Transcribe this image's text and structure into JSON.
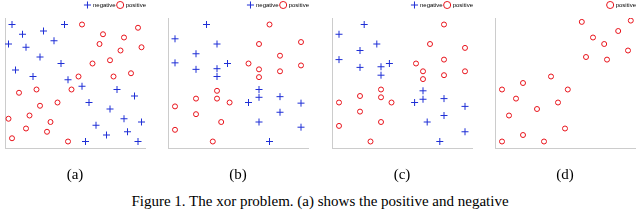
{
  "chart_data": [
    {
      "type": "scatter",
      "title": "(a)",
      "xlim": [
        -1,
        1
      ],
      "ylim": [
        -1,
        1
      ],
      "tick_labels": false,
      "grid": false,
      "legend": "top-right",
      "series": [
        {
          "name": "negative",
          "color": "#1f2fd6",
          "marker": "plus",
          "values": [
            [
              -0.9,
              0.9
            ],
            [
              -0.7,
              0.55
            ],
            [
              -0.45,
              0.8
            ],
            [
              -0.2,
              0.3
            ],
            [
              -0.85,
              0.2
            ],
            [
              -0.3,
              0.65
            ],
            [
              -0.6,
              0.1
            ],
            [
              -0.15,
              0.9
            ],
            [
              -0.5,
              0.4
            ],
            [
              -0.95,
              0.6
            ],
            [
              -0.1,
              0.05
            ],
            [
              -0.75,
              0.75
            ],
            [
              0.9,
              -0.9
            ],
            [
              0.7,
              -0.55
            ],
            [
              0.45,
              -0.8
            ],
            [
              0.2,
              -0.3
            ],
            [
              0.85,
              -0.2
            ],
            [
              0.3,
              -0.65
            ],
            [
              0.6,
              -0.1
            ],
            [
              0.15,
              -0.9
            ],
            [
              0.5,
              -0.4
            ],
            [
              0.95,
              -0.6
            ],
            [
              0.1,
              -0.05
            ],
            [
              0.75,
              -0.75
            ]
          ]
        },
        {
          "name": "positive",
          "color": "#e8141c",
          "marker": "circle",
          "values": [
            [
              0.9,
              0.85
            ],
            [
              0.65,
              0.5
            ],
            [
              0.4,
              0.75
            ],
            [
              0.25,
              0.3
            ],
            [
              0.8,
              0.15
            ],
            [
              0.35,
              0.6
            ],
            [
              0.55,
              0.1
            ],
            [
              0.1,
              0.9
            ],
            [
              0.5,
              0.35
            ],
            [
              0.95,
              0.55
            ],
            [
              0.05,
              0.1
            ],
            [
              0.7,
              0.7
            ],
            [
              -0.9,
              -0.85
            ],
            [
              -0.65,
              -0.5
            ],
            [
              -0.4,
              -0.75
            ],
            [
              -0.25,
              -0.3
            ],
            [
              -0.8,
              -0.15
            ],
            [
              -0.35,
              -0.6
            ],
            [
              -0.55,
              -0.1
            ],
            [
              -0.1,
              -0.9
            ],
            [
              -0.5,
              -0.35
            ],
            [
              -0.95,
              -0.55
            ],
            [
              -0.05,
              -0.1
            ],
            [
              -0.7,
              -0.7
            ]
          ]
        }
      ]
    },
    {
      "type": "scatter",
      "title": "(b)",
      "xlim": [
        -1,
        1
      ],
      "ylim": [
        -1,
        1
      ],
      "tick_labels": false,
      "grid": false,
      "legend": "top-right",
      "series": [
        {
          "name": "negative",
          "color": "#1f2fd6",
          "marker": "plus",
          "values": [
            [
              -0.3,
              0.22
            ],
            [
              -0.6,
              0.45
            ],
            [
              -0.9,
              0.68
            ],
            [
              -0.3,
              0.1
            ],
            [
              -0.6,
              0.21
            ],
            [
              -0.9,
              0.31
            ],
            [
              -0.15,
              0.3
            ],
            [
              -0.3,
              0.6
            ],
            [
              -0.45,
              0.9
            ],
            [
              0.3,
              -0.22
            ],
            [
              0.6,
              -0.45
            ],
            [
              0.9,
              -0.68
            ],
            [
              0.3,
              -0.1
            ],
            [
              0.6,
              -0.21
            ],
            [
              0.9,
              -0.31
            ],
            [
              0.15,
              -0.3
            ],
            [
              0.3,
              -0.6
            ],
            [
              0.45,
              -0.9
            ]
          ]
        },
        {
          "name": "positive",
          "color": "#e8141c",
          "marker": "circle",
          "values": [
            [
              0.3,
              0.09
            ],
            [
              0.6,
              0.18
            ],
            [
              0.9,
              0.27
            ],
            [
              0.3,
              0.21
            ],
            [
              0.6,
              0.42
            ],
            [
              0.9,
              0.63
            ],
            [
              0.15,
              0.3
            ],
            [
              0.3,
              0.6
            ],
            [
              0.45,
              0.9
            ],
            [
              -0.3,
              -0.12
            ],
            [
              -0.6,
              -0.24
            ],
            [
              -0.9,
              -0.36
            ],
            [
              -0.3,
              -0.24
            ],
            [
              -0.6,
              -0.48
            ],
            [
              -0.9,
              -0.72
            ],
            [
              -0.12,
              -0.3
            ],
            [
              -0.24,
              -0.6
            ],
            [
              -0.36,
              -0.9
            ]
          ]
        }
      ]
    },
    {
      "type": "scatter",
      "title": "(c)",
      "xlim": [
        -1,
        1
      ],
      "ylim": [
        -1,
        1
      ],
      "tick_labels": false,
      "grid": false,
      "legend": "top-right",
      "series": [
        {
          "name": "negative",
          "color": "#1f2fd6",
          "marker": "plus",
          "values": [
            [
              -0.3,
              0.25
            ],
            [
              -0.6,
              0.5
            ],
            [
              -0.9,
              0.75
            ],
            [
              -0.3,
              0.12
            ],
            [
              -0.6,
              0.24
            ],
            [
              -0.9,
              0.36
            ],
            [
              -0.18,
              0.3
            ],
            [
              -0.36,
              0.6
            ],
            [
              -0.54,
              0.9
            ],
            [
              0.3,
              -0.25
            ],
            [
              0.6,
              -0.5
            ],
            [
              0.9,
              -0.75
            ],
            [
              0.3,
              -0.12
            ],
            [
              0.6,
              -0.24
            ],
            [
              0.9,
              -0.36
            ],
            [
              0.18,
              -0.3
            ],
            [
              0.36,
              -0.6
            ],
            [
              0.54,
              -0.9
            ]
          ]
        },
        {
          "name": "positive",
          "color": "#e8141c",
          "marker": "circle",
          "values": [
            [
              0.3,
              0.06
            ],
            [
              0.6,
              0.12
            ],
            [
              0.9,
              0.18
            ],
            [
              0.3,
              0.18
            ],
            [
              0.6,
              0.36
            ],
            [
              0.9,
              0.54
            ],
            [
              0.2,
              0.3
            ],
            [
              0.4,
              0.6
            ],
            [
              0.6,
              0.9
            ],
            [
              -0.3,
              -0.1
            ],
            [
              -0.6,
              -0.2
            ],
            [
              -0.9,
              -0.3
            ],
            [
              -0.3,
              -0.22
            ],
            [
              -0.6,
              -0.44
            ],
            [
              -0.9,
              -0.66
            ],
            [
              -0.15,
              -0.3
            ],
            [
              -0.3,
              -0.6
            ],
            [
              -0.45,
              -0.9
            ]
          ]
        }
      ]
    },
    {
      "type": "scatter",
      "title": "(d)",
      "xlim": [
        0,
        1
      ],
      "ylim": [
        0,
        1
      ],
      "tick_labels": false,
      "grid": false,
      "legend": "top-right",
      "series": [
        {
          "name": "positive",
          "color": "#e8141c",
          "marker": "circle",
          "values": [
            [
              0.05,
              0.05
            ],
            [
              0.2,
              0.1
            ],
            [
              0.35,
              0.05
            ],
            [
              0.5,
              0.15
            ],
            [
              0.1,
              0.25
            ],
            [
              0.3,
              0.3
            ],
            [
              0.45,
              0.35
            ],
            [
              0.05,
              0.45
            ],
            [
              0.2,
              0.5
            ],
            [
              0.4,
              0.55
            ],
            [
              0.52,
              0.45
            ],
            [
              0.15,
              0.38
            ],
            [
              0.65,
              0.7
            ],
            [
              0.8,
              0.68
            ],
            [
              0.95,
              0.75
            ],
            [
              0.7,
              0.85
            ],
            [
              0.88,
              0.9
            ],
            [
              0.62,
              0.97
            ],
            [
              0.78,
              0.8
            ],
            [
              0.97,
              0.98
            ]
          ]
        }
      ]
    }
  ],
  "caption": "Figure 1. The xor problem. (a) shows the positive and negative"
}
